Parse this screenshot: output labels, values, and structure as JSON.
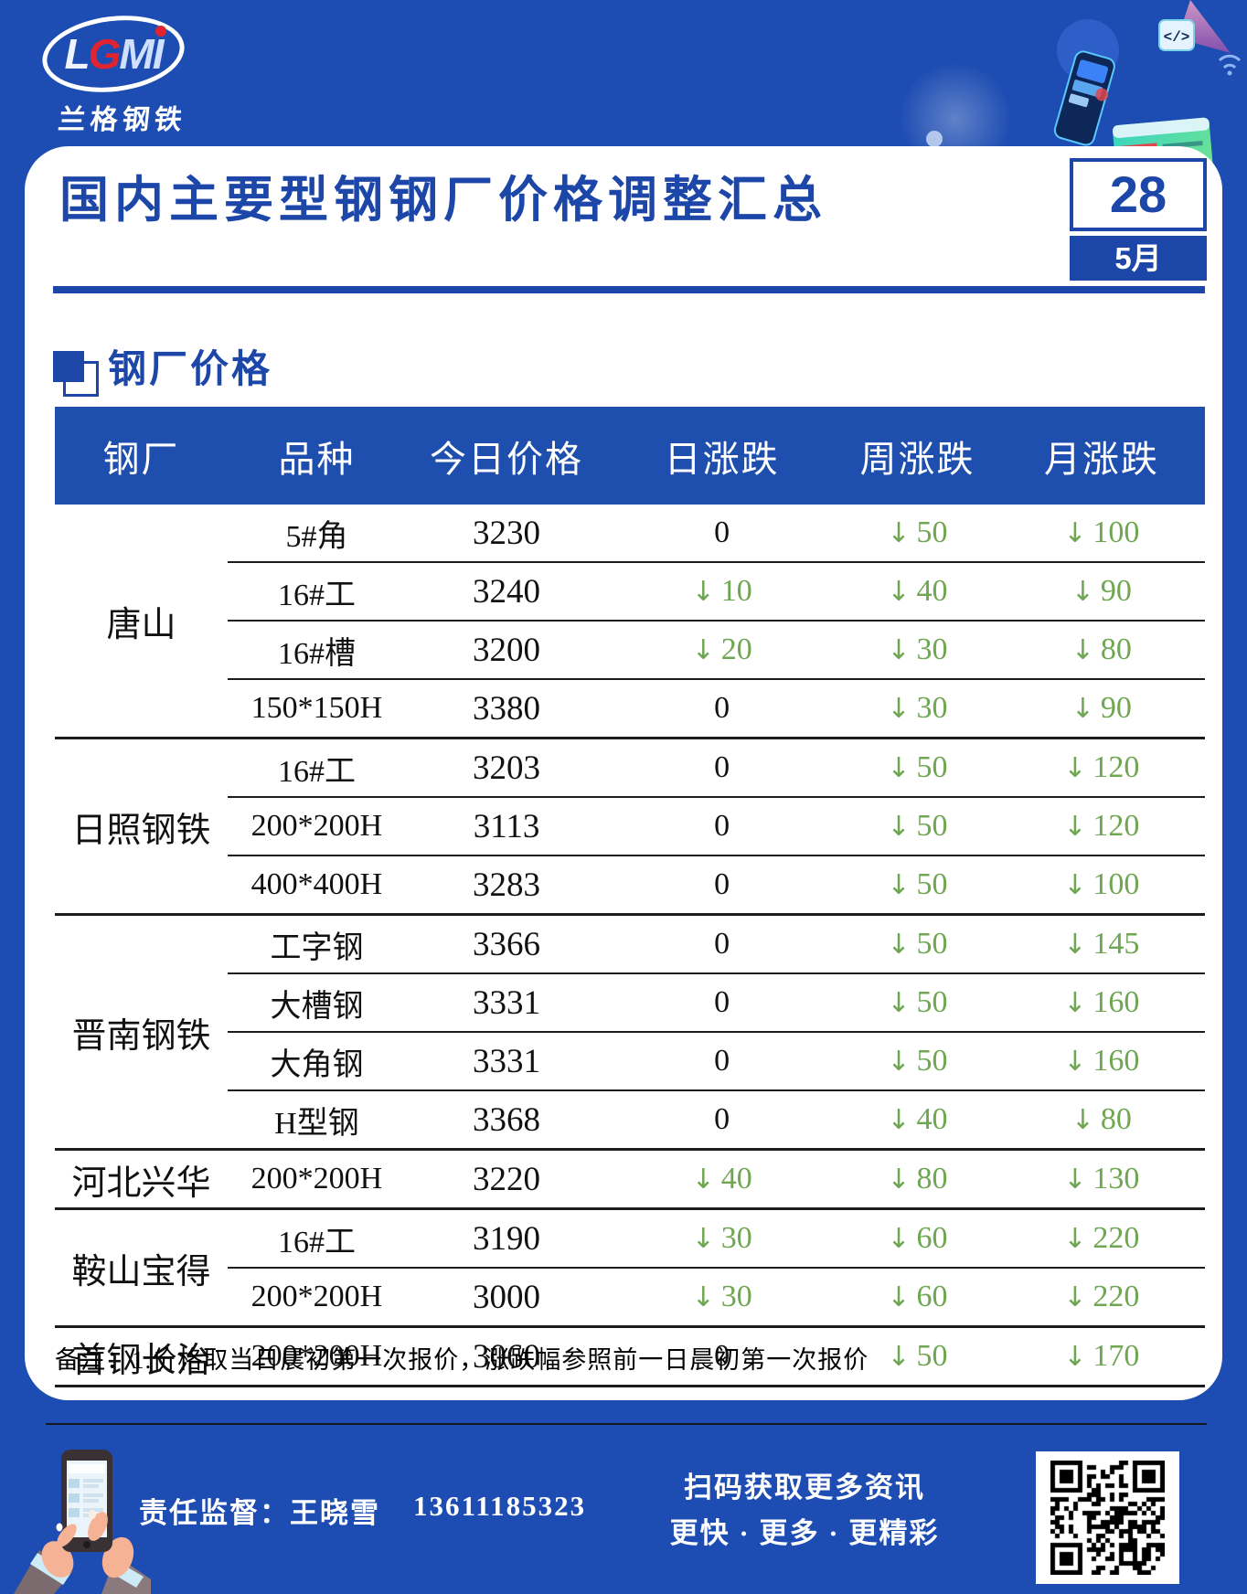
{
  "brand": {
    "logo_letters": [
      "L",
      "G",
      "M",
      "I"
    ],
    "logo_subtext": "兰格钢铁"
  },
  "header": {
    "title": "国内主要型钢钢厂价格调整汇总",
    "date_day": "28",
    "date_month": "5月"
  },
  "section": {
    "title": "钢厂价格"
  },
  "table": {
    "columns": [
      "钢厂",
      "品种",
      "今日价格",
      "日涨跌",
      "周涨跌",
      "月涨跌"
    ],
    "groups": [
      {
        "factory": "唐山",
        "rows": [
          {
            "variety": "5#角",
            "price": "3230",
            "day": "0",
            "week": "↓50",
            "month": "↓100"
          },
          {
            "variety": "16#工",
            "price": "3240",
            "day": "↓10",
            "week": "↓40",
            "month": "↓90"
          },
          {
            "variety": "16#槽",
            "price": "3200",
            "day": "↓20",
            "week": "↓30",
            "month": "↓80"
          },
          {
            "variety": "150*150H",
            "price": "3380",
            "day": "0",
            "week": "↓30",
            "month": "↓90"
          }
        ]
      },
      {
        "factory": "日照钢铁",
        "rows": [
          {
            "variety": "16#工",
            "price": "3203",
            "day": "0",
            "week": "↓50",
            "month": "↓120"
          },
          {
            "variety": "200*200H",
            "price": "3113",
            "day": "0",
            "week": "↓50",
            "month": "↓120"
          },
          {
            "variety": "400*400H",
            "price": "3283",
            "day": "0",
            "week": "↓50",
            "month": "↓100"
          }
        ]
      },
      {
        "factory": "晋南钢铁",
        "rows": [
          {
            "variety": "工字钢",
            "price": "3366",
            "day": "0",
            "week": "↓50",
            "month": "↓145"
          },
          {
            "variety": "大槽钢",
            "price": "3331",
            "day": "0",
            "week": "↓50",
            "month": "↓160"
          },
          {
            "variety": "大角钢",
            "price": "3331",
            "day": "0",
            "week": "↓50",
            "month": "↓160"
          },
          {
            "variety": "H型钢",
            "price": "3368",
            "day": "0",
            "week": "↓40",
            "month": "↓80"
          }
        ]
      },
      {
        "factory": "河北兴华",
        "rows": [
          {
            "variety": "200*200H",
            "price": "3220",
            "day": "↓40",
            "week": "↓80",
            "month": "↓130"
          }
        ]
      },
      {
        "factory": "鞍山宝得",
        "rows": [
          {
            "variety": "16#工",
            "price": "3190",
            "day": "↓30",
            "week": "↓60",
            "month": "↓220"
          },
          {
            "variety": "200*200H",
            "price": "3000",
            "day": "↓30",
            "week": "↓60",
            "month": "↓220"
          }
        ]
      },
      {
        "factory": "首钢长治",
        "rows": [
          {
            "variety": "200*200H",
            "price": "3060",
            "day": "0",
            "week": "↓50",
            "month": "↓170"
          }
        ]
      }
    ]
  },
  "note": "备注：1.价格取当日晨初第一次报价，涨跌幅参照前一日晨初第一次报价",
  "footer": {
    "supervisor_label": "责任监督：王晓雪",
    "phone": "13611185323",
    "scan_line1": "扫码获取更多资讯",
    "scan_line2": "更快 · 更多 · 更精彩"
  },
  "colors": {
    "background_blue": "#1d4cb2",
    "accent_blue": "#1c46a8",
    "table_header_blue": "#1e4fae",
    "down_green": "#6fa651",
    "logo_red": "#e02530"
  }
}
